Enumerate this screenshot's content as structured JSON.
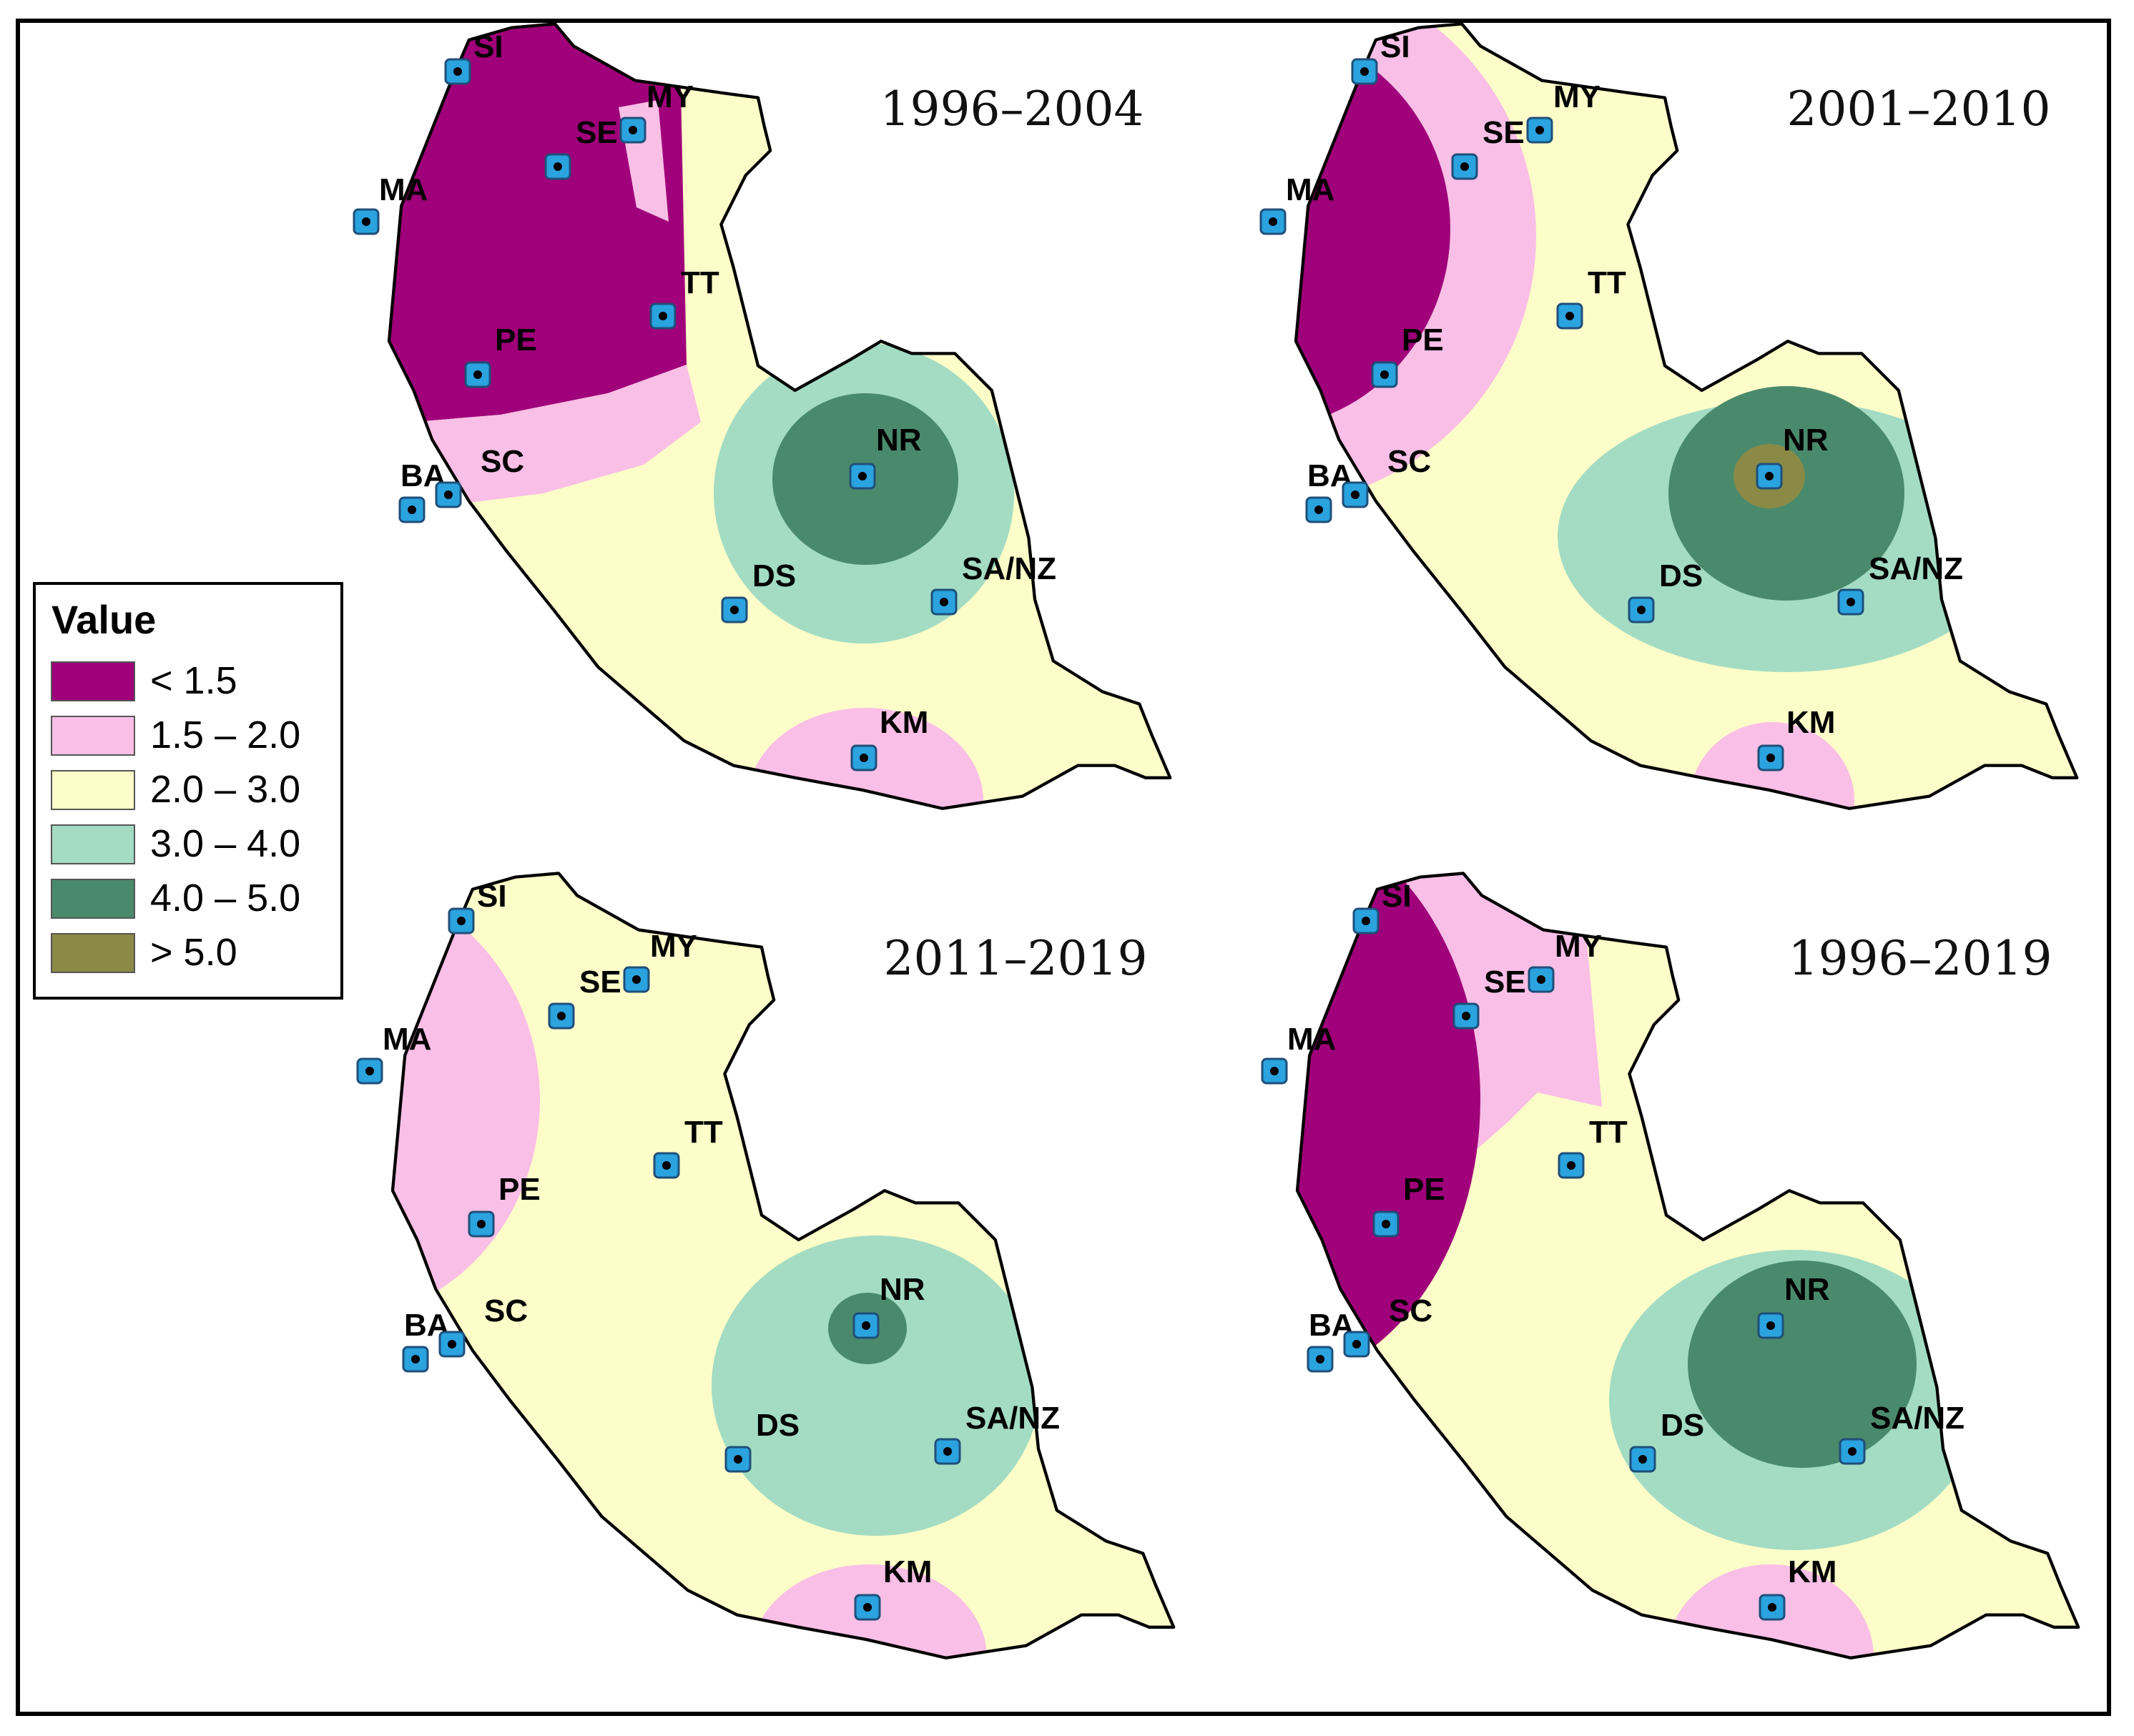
{
  "legend": {
    "title": "Value",
    "classes": [
      {
        "label": "< 1.5",
        "color": "#a0007a"
      },
      {
        "label": "1.5 – 2.0",
        "color": "#f9bfe6"
      },
      {
        "label": "2.0 – 3.0",
        "color": "#fdfdc9"
      },
      {
        "label": "3.0 – 4.0",
        "color": "#a3dcc3"
      },
      {
        "label": "4.0 – 5.0",
        "color": "#4a8a6c"
      },
      {
        "label": "> 5.0",
        "color": "#8a8a46"
      }
    ]
  },
  "station_marker_color": "#2aa3df",
  "outline_color": "#000000",
  "panels": [
    {
      "title": "1996–2004"
    },
    {
      "title": "2001–2010"
    },
    {
      "title": "2011–2019"
    },
    {
      "title": "1996–2019"
    }
  ],
  "stations": [
    "SI",
    "MY",
    "SE",
    "MA",
    "TT",
    "PE",
    "NR",
    "BA",
    "SC",
    "DS",
    "SA/NZ",
    "KM"
  ]
}
